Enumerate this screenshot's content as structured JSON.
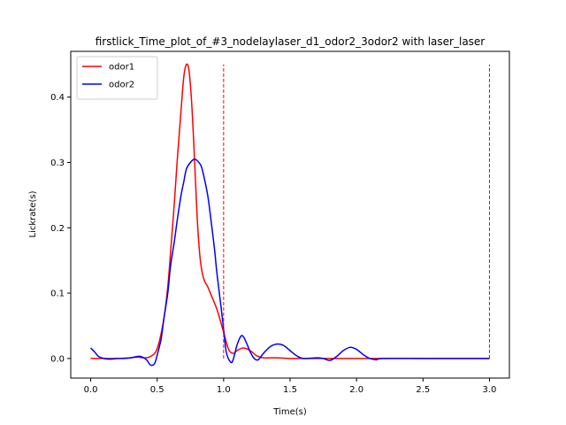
{
  "chart_data": {
    "type": "line",
    "title": "firstlick_Time_plot_of_#3_nodelaylaser_d1_odor2_3odor2 with laser_laser",
    "xlabel": "Time(s)",
    "ylabel": "Lickrate(s)",
    "xlim": [
      -0.15,
      3.15
    ],
    "ylim": [
      -0.03,
      0.47
    ],
    "xticks": [
      {
        "value": 0.0,
        "label": "0.0"
      },
      {
        "value": 0.5,
        "label": "0.5"
      },
      {
        "value": 1.0,
        "label": "1.0"
      },
      {
        "value": 1.5,
        "label": "1.5"
      },
      {
        "value": 2.0,
        "label": "2.0"
      },
      {
        "value": 2.5,
        "label": "2.5"
      },
      {
        "value": 3.0,
        "label": "3.0"
      }
    ],
    "yticks": [
      {
        "value": 0.0,
        "label": "0.0"
      },
      {
        "value": 0.1,
        "label": "0.1"
      },
      {
        "value": 0.2,
        "label": "0.2"
      },
      {
        "value": 0.3,
        "label": "0.3"
      },
      {
        "value": 0.4,
        "label": "0.4"
      }
    ],
    "legend_position": "top-left",
    "grid": false,
    "series": [
      {
        "name": "odor1",
        "color": "#ff0000",
        "x": [
          0.0,
          0.1,
          0.2,
          0.3,
          0.35,
          0.4,
          0.45,
          0.5,
          0.55,
          0.58,
          0.6,
          0.63,
          0.65,
          0.68,
          0.7,
          0.72,
          0.74,
          0.76,
          0.78,
          0.8,
          0.82,
          0.84,
          0.86,
          0.88,
          0.9,
          0.95,
          1.0,
          1.03,
          1.05,
          1.08,
          1.1,
          1.15,
          1.2,
          1.25,
          1.3,
          1.4,
          1.5,
          1.6,
          1.7,
          1.8,
          1.9,
          2.0,
          2.2,
          2.5,
          2.8,
          3.0
        ],
        "y": [
          0.0,
          0.0,
          0.0,
          0.001,
          0.002,
          0.001,
          0.003,
          0.015,
          0.06,
          0.11,
          0.16,
          0.24,
          0.3,
          0.38,
          0.43,
          0.45,
          0.44,
          0.39,
          0.31,
          0.22,
          0.16,
          0.13,
          0.117,
          0.11,
          0.1,
          0.075,
          0.04,
          0.018,
          0.01,
          0.008,
          0.012,
          0.016,
          0.012,
          0.004,
          0.001,
          0.001,
          0.0,
          0.0,
          0.0,
          0.0,
          0.0,
          0.0,
          0.0,
          0.0,
          0.0,
          0.0
        ]
      },
      {
        "name": "odor2",
        "color": "#0000ff",
        "x": [
          0.0,
          0.03,
          0.06,
          0.1,
          0.15,
          0.2,
          0.25,
          0.3,
          0.35,
          0.38,
          0.42,
          0.45,
          0.48,
          0.5,
          0.53,
          0.55,
          0.58,
          0.6,
          0.63,
          0.65,
          0.68,
          0.7,
          0.72,
          0.75,
          0.78,
          0.8,
          0.83,
          0.85,
          0.88,
          0.9,
          0.93,
          0.95,
          0.98,
          1.0,
          1.02,
          1.05,
          1.07,
          1.1,
          1.13,
          1.15,
          1.18,
          1.2,
          1.23,
          1.26,
          1.3,
          1.35,
          1.4,
          1.45,
          1.5,
          1.55,
          1.6,
          1.7,
          1.75,
          1.8,
          1.85,
          1.9,
          1.95,
          2.0,
          2.05,
          2.1,
          2.15,
          2.2,
          2.5,
          2.8,
          3.0
        ],
        "y": [
          0.016,
          0.01,
          0.003,
          0.0,
          -0.001,
          0.0,
          0.0,
          0.001,
          0.003,
          0.003,
          -0.002,
          -0.01,
          -0.008,
          0.005,
          0.03,
          0.06,
          0.1,
          0.14,
          0.18,
          0.21,
          0.25,
          0.27,
          0.29,
          0.3,
          0.305,
          0.303,
          0.295,
          0.28,
          0.25,
          0.22,
          0.17,
          0.13,
          0.08,
          0.045,
          0.01,
          -0.005,
          -0.003,
          0.02,
          0.034,
          0.033,
          0.02,
          0.01,
          0.0,
          -0.002,
          0.008,
          0.018,
          0.022,
          0.02,
          0.012,
          0.004,
          0.0,
          0.001,
          0.0,
          -0.003,
          0.003,
          0.012,
          0.017,
          0.014,
          0.006,
          0.0,
          -0.002,
          0.0,
          0.0,
          0.0,
          0.0
        ]
      }
    ],
    "vlines": [
      {
        "x": 1.0,
        "ymin": 0.0,
        "ymax": 0.45,
        "color": "#ff0000",
        "style": "dashed"
      },
      {
        "x": 3.0,
        "ymin": 0.0,
        "ymax": 0.45,
        "color": "#008000",
        "style": "dashed"
      }
    ]
  }
}
